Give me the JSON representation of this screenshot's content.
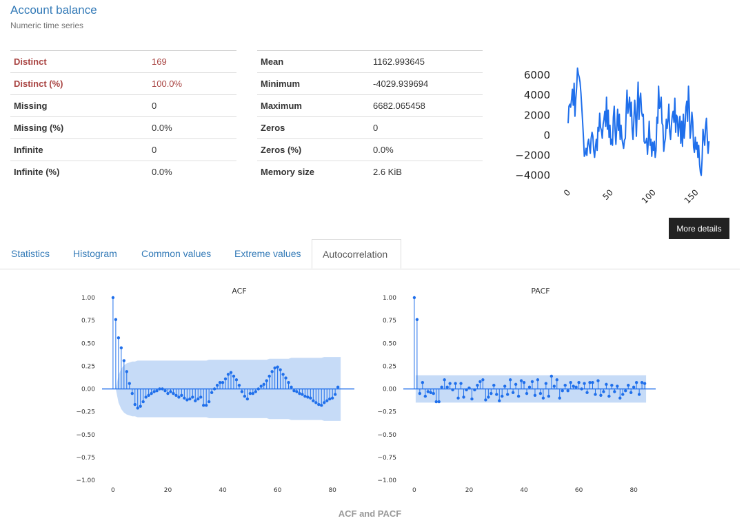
{
  "variable": {
    "name": "Account balance",
    "type": "Numeric time series"
  },
  "stats_left": [
    {
      "label": "Distinct",
      "value": "169",
      "warn": true
    },
    {
      "label": "Distinct (%)",
      "value": "100.0%",
      "warn": true
    },
    {
      "label": "Missing",
      "value": "0",
      "warn": false
    },
    {
      "label": "Missing (%)",
      "value": "0.0%",
      "warn": false
    },
    {
      "label": "Infinite",
      "value": "0",
      "warn": false
    },
    {
      "label": "Infinite (%)",
      "value": "0.0%",
      "warn": false
    }
  ],
  "stats_right": [
    {
      "label": "Mean",
      "value": "1162.993645"
    },
    {
      "label": "Minimum",
      "value": "-4029.939694"
    },
    {
      "label": "Maximum",
      "value": "6682.065458"
    },
    {
      "label": "Zeros",
      "value": "0"
    },
    {
      "label": "Zeros (%)",
      "value": "0.0%"
    },
    {
      "label": "Memory size",
      "value": "2.6 KiB"
    }
  ],
  "more_details_label": "More details",
  "tabs": [
    {
      "label": "Statistics",
      "active": false
    },
    {
      "label": "Histogram",
      "active": false
    },
    {
      "label": "Common values",
      "active": false
    },
    {
      "label": "Extreme values",
      "active": false
    },
    {
      "label": "Autocorrelation",
      "active": true
    }
  ],
  "colors": {
    "line": "#1f6feb",
    "confidence_band": "#c6dbf7",
    "warn": "#a94442",
    "link": "#337ab7"
  },
  "chart_data": [
    {
      "type": "line",
      "id": "mini-series",
      "title": "",
      "xlabel": "",
      "ylabel": "",
      "x_ticks": [
        0,
        50,
        100,
        150
      ],
      "y_ticks": [
        "6000",
        "4000",
        "2000",
        "0",
        "−2000",
        "−4000"
      ],
      "xlim": [
        0,
        168
      ],
      "ylim": [
        -4100,
        6900
      ],
      "values": [
        1200,
        2900,
        3100,
        2800,
        3600,
        4600,
        3000,
        5200,
        1900,
        3600,
        4800,
        6700,
        6100,
        5800,
        5300,
        4200,
        2800,
        1400,
        -300,
        -2100,
        -1900,
        -1300,
        -2000,
        -800,
        -400,
        -1200,
        -1800,
        -300,
        300,
        -100,
        -1500,
        -2200,
        -1200,
        -400,
        -1500,
        800,
        400,
        2200,
        800,
        500,
        -300,
        1100,
        1600,
        2400,
        900,
        3800,
        600,
        2500,
        -200,
        1000,
        -900,
        -400,
        -1000,
        1800,
        2900,
        500,
        -900,
        800,
        2600,
        500,
        2100,
        -400,
        1000,
        -300,
        -800,
        -1300,
        -500,
        -300,
        2400,
        4500,
        2200,
        2900,
        3800,
        1900,
        3300,
        600,
        -400,
        1400,
        3500,
        2200,
        -100,
        2700,
        5300,
        1600,
        3600,
        4200,
        2400,
        1900,
        2100,
        -600,
        -800,
        -700,
        -300,
        -1900,
        -500,
        1400,
        -1000,
        -400,
        -2100,
        -700,
        -1500,
        -600,
        -2200,
        -1500,
        1800,
        1200,
        4900,
        2700,
        2900,
        3800,
        1200,
        1000,
        -1600,
        -800,
        -300,
        1600,
        700,
        1500,
        3100,
        400,
        -400,
        1000,
        1900,
        2400,
        1300,
        3700,
        300,
        2000,
        1800,
        -100,
        1100,
        1900,
        -800,
        1400,
        -1100,
        2100,
        -300,
        900,
        2800,
        3400,
        1400,
        4900,
        2800,
        -300,
        600,
        2300,
        1300,
        -1200,
        -1700,
        -200,
        -1400,
        -700,
        -2200,
        -1000,
        -2900,
        -3700,
        -4000,
        -2300,
        600,
        -300,
        -1000,
        800,
        1700,
        -200,
        -1800,
        -600
      ]
    },
    {
      "type": "bar",
      "id": "acf",
      "title": "ACF",
      "xlabel": "",
      "ylabel": "",
      "x_ticks": [
        0,
        20,
        40,
        60,
        80
      ],
      "y_ticks": [
        1.0,
        0.75,
        0.5,
        0.25,
        0.0,
        -0.25,
        -0.5,
        -0.75,
        -1.0
      ],
      "y_tick_labels": [
        "1.00",
        "0.75",
        "0.50",
        "0.25",
        "0.00",
        "−0.25",
        "−0.50",
        "−0.75",
        "−1.00"
      ],
      "xlim": [
        -4,
        88
      ],
      "ylim": [
        -1.0,
        1.0
      ],
      "values": [
        1.0,
        0.76,
        0.56,
        0.45,
        0.31,
        0.19,
        0.06,
        -0.05,
        -0.17,
        -0.21,
        -0.19,
        -0.14,
        -0.09,
        -0.07,
        -0.05,
        -0.03,
        -0.02,
        0.0,
        0.0,
        -0.02,
        -0.05,
        -0.03,
        -0.05,
        -0.07,
        -0.09,
        -0.07,
        -0.1,
        -0.12,
        -0.11,
        -0.09,
        -0.13,
        -0.11,
        -0.09,
        -0.18,
        -0.18,
        -0.14,
        -0.04,
        0.0,
        0.04,
        0.07,
        0.07,
        0.11,
        0.16,
        0.18,
        0.14,
        0.1,
        0.04,
        -0.03,
        -0.08,
        -0.11,
        -0.05,
        -0.05,
        -0.03,
        0.0,
        0.03,
        0.05,
        0.09,
        0.14,
        0.19,
        0.23,
        0.24,
        0.21,
        0.16,
        0.12,
        0.07,
        0.02,
        -0.02,
        -0.03,
        -0.05,
        -0.06,
        -0.08,
        -0.09,
        -0.1,
        -0.13,
        -0.15,
        -0.17,
        -0.18,
        -0.15,
        -0.13,
        -0.11,
        -0.1,
        -0.06,
        0.02
      ],
      "confint_upper": [
        0.0,
        0.15,
        0.22,
        0.26,
        0.28,
        0.29,
        0.3,
        0.3,
        0.31,
        0.31,
        0.31,
        0.31,
        0.31,
        0.31,
        0.31,
        0.31,
        0.31,
        0.31,
        0.31,
        0.31,
        0.31,
        0.31,
        0.31,
        0.31,
        0.31,
        0.31,
        0.31,
        0.31,
        0.31,
        0.31,
        0.31,
        0.31,
        0.31,
        0.31,
        0.32,
        0.32,
        0.32,
        0.32,
        0.32,
        0.32,
        0.32,
        0.32,
        0.32,
        0.32,
        0.32,
        0.32,
        0.32,
        0.32,
        0.32,
        0.32,
        0.32,
        0.32,
        0.32,
        0.32,
        0.32,
        0.32,
        0.33,
        0.33,
        0.33,
        0.33,
        0.33,
        0.33,
        0.33,
        0.33,
        0.34,
        0.34,
        0.34,
        0.34,
        0.34,
        0.34,
        0.34,
        0.34,
        0.34,
        0.34,
        0.34,
        0.34,
        0.35,
        0.35,
        0.35,
        0.35,
        0.35,
        0.35,
        0.35
      ]
    },
    {
      "type": "bar",
      "id": "pacf",
      "title": "PACF",
      "xlabel": "",
      "ylabel": "",
      "x_ticks": [
        0,
        20,
        40,
        60,
        80
      ],
      "y_ticks": [
        1.0,
        0.75,
        0.5,
        0.25,
        0.0,
        -0.25,
        -0.5,
        -0.75,
        -1.0
      ],
      "y_tick_labels": [
        "1.00",
        "0.75",
        "0.50",
        "0.25",
        "0.00",
        "−0.25",
        "−0.50",
        "−0.75",
        "−1.00"
      ],
      "xlim": [
        -4,
        88
      ],
      "ylim": [
        -1.0,
        1.0
      ],
      "values": [
        1.0,
        0.76,
        -0.05,
        0.07,
        -0.08,
        -0.03,
        -0.04,
        -0.05,
        -0.14,
        -0.14,
        0.02,
        0.1,
        0.02,
        0.06,
        -0.01,
        0.06,
        -0.1,
        0.06,
        -0.09,
        -0.01,
        0.01,
        -0.11,
        -0.01,
        0.04,
        0.08,
        0.1,
        -0.12,
        -0.09,
        -0.05,
        0.04,
        -0.06,
        -0.13,
        -0.08,
        0.03,
        -0.06,
        0.1,
        -0.04,
        0.05,
        -0.08,
        0.09,
        0.07,
        -0.05,
        0.02,
        0.08,
        -0.07,
        0.1,
        -0.05,
        -0.1,
        0.06,
        -0.08,
        0.14,
        0.03,
        0.1,
        -0.1,
        -0.02,
        0.04,
        -0.02,
        0.07,
        0.03,
        0.02,
        0.07,
        0.0,
        0.06,
        -0.04,
        0.07,
        0.07,
        -0.06,
        0.09,
        -0.07,
        -0.03,
        0.05,
        -0.08,
        0.04,
        -0.03,
        0.03,
        -0.1,
        -0.06,
        -0.02,
        0.04,
        -0.04,
        0.02,
        0.07,
        -0.06,
        0.07,
        0.06
      ],
      "confint": 0.15
    }
  ],
  "chart_footer": "ACF and PACF"
}
